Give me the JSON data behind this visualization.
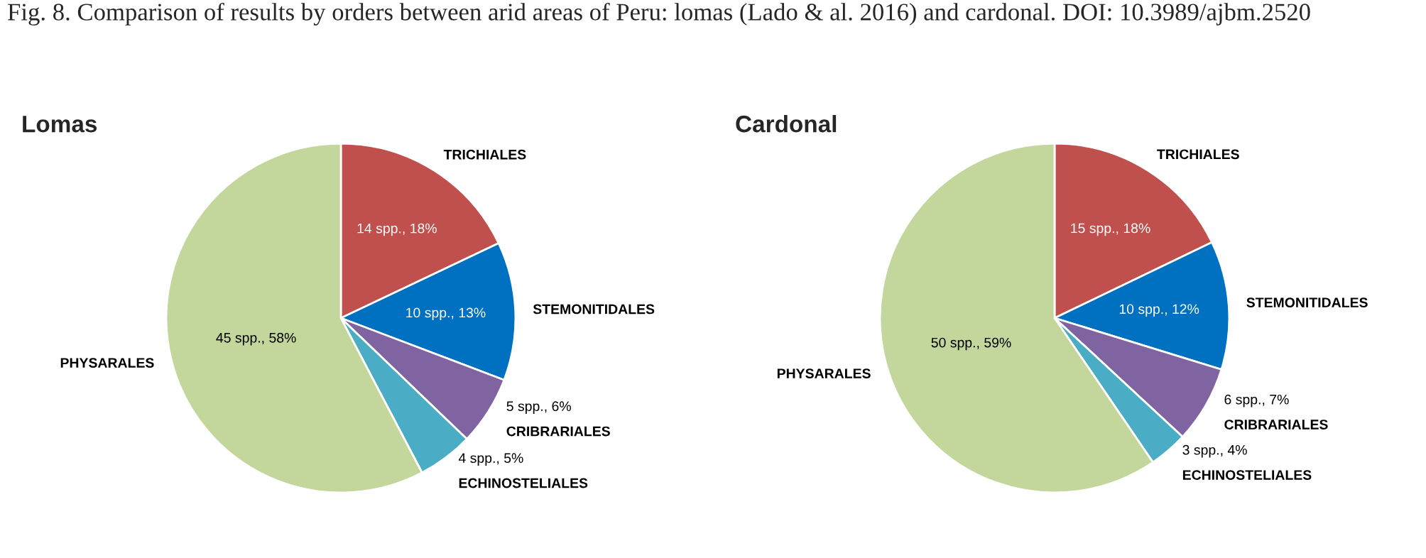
{
  "chart_data": [
    {
      "type": "pie",
      "title": "Lomas",
      "annotations": [
        "Fig. 8. Comparison of results by orders between arid areas of Peru: lomas (Lado & al. 2016) and cardonal. DOI: 10.3989/ajbm.2520"
      ],
      "categories": [
        "TRICHIALES",
        "STEMONITIDALES",
        "CRIBRARIALES",
        "ECHINOSTELIALES",
        "PHYSARALES"
      ],
      "values": [
        14,
        10,
        5,
        4,
        45
      ],
      "value_labels": [
        "14 spp., 18%",
        "10 spp., 13%",
        "5 spp., 6%",
        "4 spp., 5%",
        "45 spp., 58%"
      ],
      "colors": [
        "#c0504d",
        "#0070c0",
        "#8064a2",
        "#4bacc6",
        "#c3d69b"
      ],
      "legend": false
    },
    {
      "type": "pie",
      "title": "Cardonal",
      "categories": [
        "TRICHIALES",
        "STEMONITIDALES",
        "CRIBRARIALES",
        "ECHINOSTELIALES",
        "PHYSARALES"
      ],
      "values": [
        15,
        10,
        6,
        3,
        50
      ],
      "value_labels": [
        "15 spp., 18%",
        "10 spp., 12%",
        "6 spp., 7%",
        "3 spp., 4%",
        "50 spp., 59%"
      ],
      "colors": [
        "#c0504d",
        "#0070c0",
        "#8064a2",
        "#4bacc6",
        "#c3d69b"
      ],
      "legend": false
    }
  ]
}
